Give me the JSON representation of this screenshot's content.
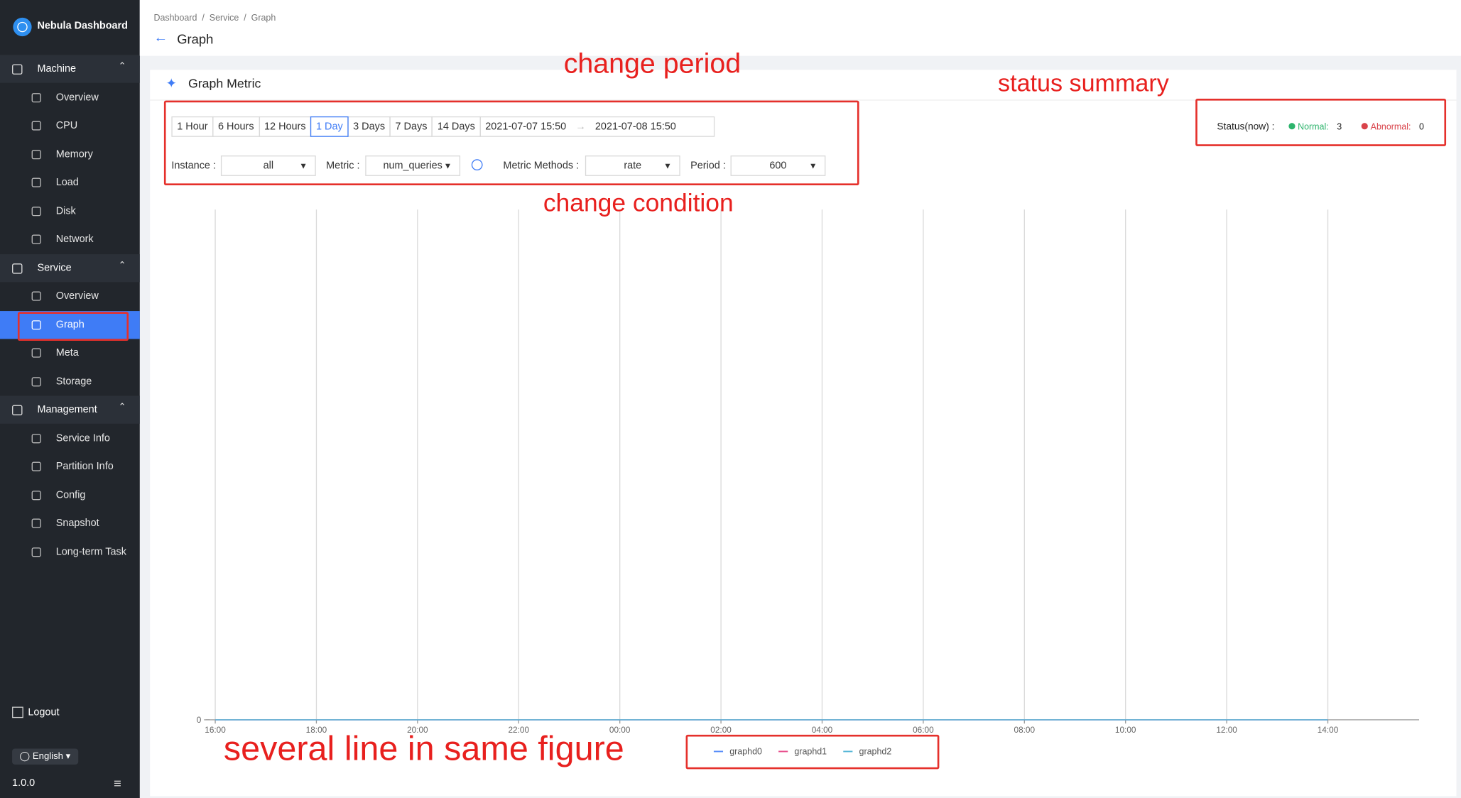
{
  "sidebar": {
    "brand": "Nebula Dashboard",
    "groups": [
      {
        "title": "Machine",
        "items": [
          "Overview",
          "CPU",
          "Memory",
          "Load",
          "Disk",
          "Network"
        ]
      },
      {
        "title": "Service",
        "items": [
          "Overview",
          "Graph",
          "Meta",
          "Storage"
        ]
      },
      {
        "title": "Management",
        "items": [
          "Service Info",
          "Partition Info",
          "Config",
          "Snapshot",
          "Long-term Task"
        ]
      }
    ],
    "logout": "Logout",
    "language": "English",
    "version": "1.0.0"
  },
  "header": {
    "breadcrumb": [
      "Dashboard",
      "Service",
      "Graph"
    ],
    "title": "Graph"
  },
  "panel": {
    "title": "Graph Metric",
    "periods": [
      "1 Hour",
      "6 Hours",
      "12 Hours",
      "1 Day",
      "3 Days",
      "7 Days",
      "14 Days"
    ],
    "selected_period": 3,
    "date_range": [
      "2021-07-07 15:50",
      "2021-07-08 15:50"
    ],
    "filters": [
      {
        "label": "Instance :",
        "value": "all"
      },
      {
        "label": "Metric :",
        "value": "num_queries"
      },
      {
        "label": "Metric Methods :",
        "value": "rate"
      },
      {
        "label": "Period :",
        "value": "600"
      }
    ],
    "status": {
      "label": "Status(now) :",
      "normal_label": "Normal:",
      "normal": 3,
      "abnormal_label": "Abnormal:",
      "abnormal": 0
    }
  },
  "chart": {
    "type": "line",
    "x": [
      "16:00",
      "18:00",
      "20:00",
      "22:00",
      "00:00",
      "02:00",
      "04:00",
      "06:00",
      "08:00",
      "10:00",
      "12:00",
      "14:00"
    ],
    "yticks": [
      0
    ],
    "ylim": [
      0,
      1
    ],
    "series": [
      {
        "name": "graphd0",
        "color": "#5b8ff9",
        "values": [
          0,
          0,
          0,
          0,
          0,
          0,
          0,
          0,
          0,
          0,
          0,
          0
        ]
      },
      {
        "name": "graphd1",
        "color": "#e8538f",
        "values": [
          0,
          0,
          0,
          0,
          0,
          0,
          0,
          0,
          0,
          0,
          0,
          0
        ]
      },
      {
        "name": "graphd2",
        "color": "#5ab8d8",
        "values": [
          0,
          0,
          0,
          0,
          0,
          0,
          0,
          0,
          0,
          0,
          0,
          0
        ]
      }
    ]
  },
  "annotations": {
    "period": "change  period",
    "status": "status summary",
    "condition": "change condition",
    "lines": "several line in same figure"
  }
}
